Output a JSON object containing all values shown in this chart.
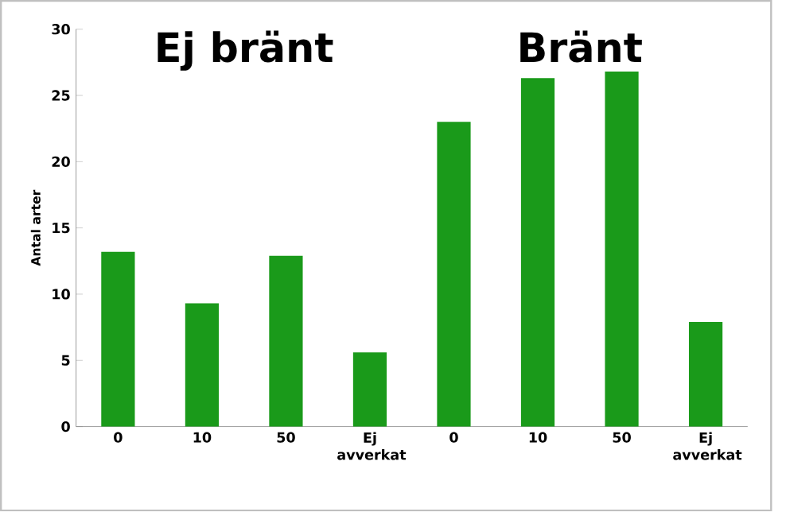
{
  "chart_data": {
    "type": "bar",
    "ylabel": "Antal arter",
    "categories": [
      "0",
      "10",
      "50",
      "Ej avverkat",
      "0",
      "10",
      "50",
      "Ej avverkat"
    ],
    "values": [
      13.2,
      9.3,
      12.9,
      5.6,
      23.0,
      26.3,
      26.8,
      7.9
    ],
    "color": "#1a9a1a",
    "ylim": [
      0,
      30
    ],
    "yticks": [
      0,
      5,
      10,
      15,
      20,
      25,
      30
    ],
    "annotations": [
      "Ej bränt",
      "Bränt"
    ]
  }
}
